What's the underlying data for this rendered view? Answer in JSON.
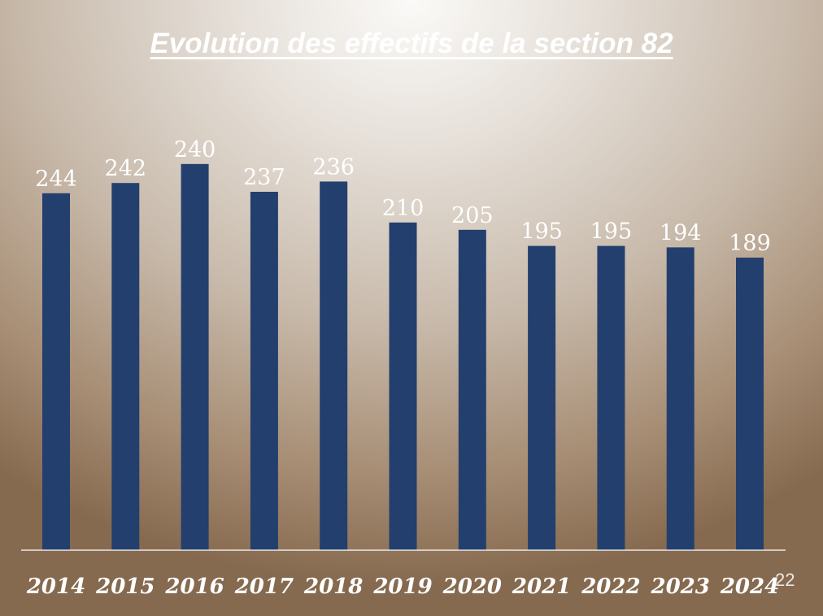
{
  "chart_data": {
    "type": "bar",
    "title": "Evolution des effectifs de la section 82",
    "xlabel": "",
    "ylabel": "",
    "categories": [
      "2014",
      "2015",
      "2016",
      "2017",
      "2018",
      "2019",
      "2020",
      "2021",
      "2022",
      "2023",
      "2024"
    ],
    "values": [
      244,
      242,
      240,
      237,
      236,
      210,
      205,
      195,
      195,
      194,
      189
    ],
    "visual_scale": [
      244,
      251,
      264,
      245,
      252,
      224,
      219,
      208,
      208,
      207,
      200
    ],
    "data_labels": true,
    "grid": false,
    "legend": "none",
    "colors": {
      "bar": "#233f6e",
      "text": "#ffffff",
      "axis": "#ffffff"
    }
  },
  "slide": {
    "page_number": "22"
  }
}
